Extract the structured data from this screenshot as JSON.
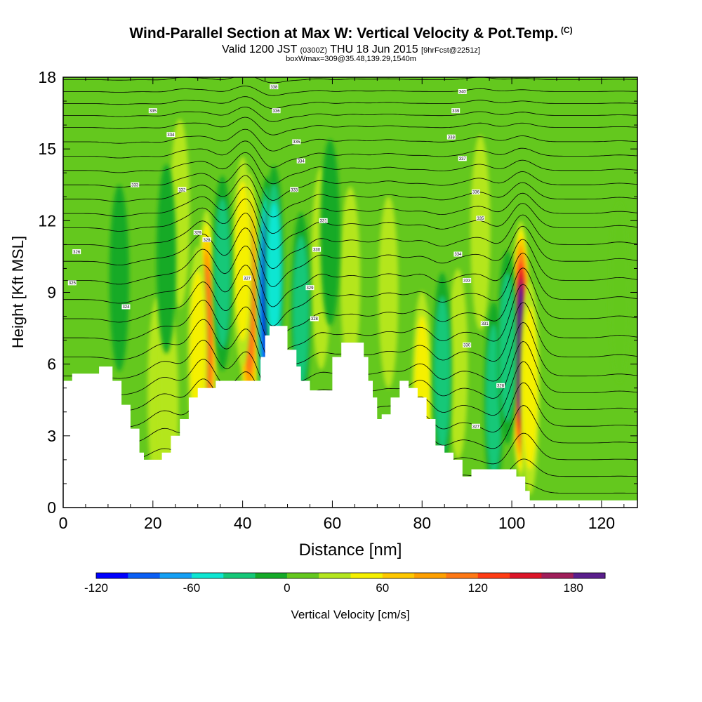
{
  "header": {
    "title": "Wind-Parallel Section at Max W: Vertical Velocity & Pot.Temp.",
    "copyright": "(C)",
    "valid_prefix": "Valid 1200 JST",
    "valid_utc": "(0300Z)",
    "valid_date": "THU 18 Jun 2015",
    "forecast": "[9hrFcst@2251z]",
    "box_info": "boxWmax=309@35.48,139.29,1540m"
  },
  "chart_data": {
    "type": "heatmap",
    "xlabel": "Distance [nm]",
    "ylabel": "Height [Kft MSL]",
    "xlim": [
      0,
      128
    ],
    "ylim": [
      0,
      18
    ],
    "x_ticks": [
      0,
      20,
      40,
      60,
      80,
      100,
      120
    ],
    "x_tick_labels": [
      "0",
      "20",
      "40",
      "60",
      "80",
      "100",
      "120"
    ],
    "y_ticks": [
      0,
      3,
      6,
      9,
      12,
      15,
      18
    ],
    "y_tick_labels": [
      "0",
      "3",
      "6",
      "9",
      "12",
      "15",
      "18"
    ],
    "colorbar": {
      "label": "Vertical Velocity [cm/s]",
      "min": -120,
      "max": 200,
      "step": 20,
      "tick_values": [
        -120,
        -60,
        0,
        60,
        120,
        180
      ],
      "tick_labels": [
        "-120",
        "-60",
        "0",
        "60",
        "120",
        "180"
      ],
      "colors": [
        "#0000ff",
        "#0a5ff5",
        "#14a0f5",
        "#0ee6d2",
        "#14c878",
        "#14aa28",
        "#64c81e",
        "#b4e61e",
        "#f5f000",
        "#ffc800",
        "#ffa000",
        "#ff7814",
        "#ff3c14",
        "#dc1428",
        "#a01e5a",
        "#5a1e8c"
      ]
    },
    "background_value": 10,
    "terrain": [
      [
        0,
        5.3
      ],
      [
        2,
        5.6
      ],
      [
        7,
        5.6
      ],
      [
        8,
        5.9
      ],
      [
        10,
        5.9
      ],
      [
        11,
        5.3
      ],
      [
        13,
        4.3
      ],
      [
        15,
        3.3
      ],
      [
        17,
        2.3
      ],
      [
        18,
        2.0
      ],
      [
        21,
        2.0
      ],
      [
        22,
        2.3
      ],
      [
        24,
        3.0
      ],
      [
        26,
        3.7
      ],
      [
        28,
        4.6
      ],
      [
        30,
        5.0
      ],
      [
        32,
        5.0
      ],
      [
        34,
        5.3
      ],
      [
        38,
        5.3
      ],
      [
        42,
        5.3
      ],
      [
        44,
        6.3
      ],
      [
        45,
        7.2
      ],
      [
        46,
        7.6
      ],
      [
        48,
        7.6
      ],
      [
        50,
        6.6
      ],
      [
        52,
        5.9
      ],
      [
        53,
        5.3
      ],
      [
        55,
        4.9
      ],
      [
        58,
        4.9
      ],
      [
        60,
        6.3
      ],
      [
        62,
        6.9
      ],
      [
        66,
        6.9
      ],
      [
        67,
        6.3
      ],
      [
        68,
        5.3
      ],
      [
        69,
        4.6
      ],
      [
        70,
        3.7
      ],
      [
        71,
        3.9
      ],
      [
        73,
        4.6
      ],
      [
        75,
        5.3
      ],
      [
        77,
        5.0
      ],
      [
        79,
        4.6
      ],
      [
        81,
        3.7
      ],
      [
        83,
        2.6
      ],
      [
        85,
        2.3
      ],
      [
        87,
        2.0
      ],
      [
        89,
        1.3
      ],
      [
        91,
        1.6
      ],
      [
        92,
        1.6
      ],
      [
        98,
        1.6
      ],
      [
        101,
        1.3
      ],
      [
        103,
        0.7
      ],
      [
        104,
        0.3
      ],
      [
        108,
        0.3
      ],
      [
        128,
        0.3
      ]
    ],
    "updrafts": [
      {
        "x": 21,
        "y": 4.7,
        "w": 34
      },
      {
        "x": 23.5,
        "y": 4.2,
        "w": 46
      },
      {
        "x": 32,
        "y": 7.1,
        "w": 118
      },
      {
        "x": 30,
        "y": 6.5,
        "w": 56
      },
      {
        "x": 41.5,
        "y": 8.6,
        "w": 122
      },
      {
        "x": 40,
        "y": 10.3,
        "w": 52
      },
      {
        "x": 57.5,
        "y": 10.0,
        "w": 42
      },
      {
        "x": 64,
        "y": 9.5,
        "w": 22
      },
      {
        "x": 72.5,
        "y": 9.0,
        "w": 28
      },
      {
        "x": 80,
        "y": 4.6,
        "w": 58
      },
      {
        "x": 93,
        "y": 11.5,
        "w": 32
      },
      {
        "x": 102,
        "y": 6.6,
        "w": 196
      },
      {
        "x": 104,
        "y": 5.0,
        "w": 58
      },
      {
        "x": 88,
        "y": 6.0,
        "w": 26
      },
      {
        "x": 26,
        "y": 12.3,
        "w": 24
      },
      {
        "x": 124,
        "y": 9.0,
        "w": 12
      }
    ],
    "downdrafts": [
      {
        "x": 45.5,
        "y": 8.6,
        "w": -110
      },
      {
        "x": 47,
        "y": 9.8,
        "w": -60
      },
      {
        "x": 53,
        "y": 8.2,
        "w": -36
      },
      {
        "x": 35.5,
        "y": 9.8,
        "w": -32
      },
      {
        "x": 84.5,
        "y": 5.6,
        "w": -42
      },
      {
        "x": 96,
        "y": 4.5,
        "w": -34
      },
      {
        "x": 99,
        "y": 6.7,
        "w": -30
      },
      {
        "x": 23,
        "y": 10.4,
        "w": -24
      },
      {
        "x": 12.5,
        "y": 9.6,
        "w": -20
      },
      {
        "x": 59.5,
        "y": 11.5,
        "w": -20
      }
    ],
    "theta_contours": {
      "base_values": [
        0.6,
        1.3,
        2.0,
        2.7,
        3.4,
        4.1,
        4.8,
        5.5,
        6.3,
        7.1,
        7.9,
        8.7,
        9.5,
        10.3,
        11.0,
        11.7,
        12.3,
        12.9,
        13.5,
        14.1,
        14.7,
        15.3,
        15.9,
        16.4,
        16.9,
        17.4,
        17.9
      ],
      "labels": [
        {
          "x": 3,
          "y": 10.7,
          "text": "326"
        },
        {
          "x": 2,
          "y": 9.4,
          "text": "325"
        },
        {
          "x": 14,
          "y": 8.4,
          "text": "324"
        },
        {
          "x": 16,
          "y": 13.5,
          "text": "333"
        },
        {
          "x": 20,
          "y": 16.6,
          "text": "335"
        },
        {
          "x": 24,
          "y": 15.6,
          "text": "334"
        },
        {
          "x": 26.5,
          "y": 13.3,
          "text": "332"
        },
        {
          "x": 30,
          "y": 11.5,
          "text": "329"
        },
        {
          "x": 32,
          "y": 11.2,
          "text": "328"
        },
        {
          "x": 41,
          "y": 9.6,
          "text": "327"
        },
        {
          "x": 47,
          "y": 17.6,
          "text": "338"
        },
        {
          "x": 47.5,
          "y": 16.6,
          "text": "336"
        },
        {
          "x": 52,
          "y": 15.3,
          "text": "335"
        },
        {
          "x": 53,
          "y": 14.5,
          "text": "334"
        },
        {
          "x": 51.5,
          "y": 13.3,
          "text": "333"
        },
        {
          "x": 58,
          "y": 12.0,
          "text": "331"
        },
        {
          "x": 56.5,
          "y": 10.8,
          "text": "330"
        },
        {
          "x": 55,
          "y": 9.2,
          "text": "329"
        },
        {
          "x": 56,
          "y": 7.9,
          "text": "328"
        },
        {
          "x": 89,
          "y": 17.4,
          "text": "340"
        },
        {
          "x": 87.5,
          "y": 16.6,
          "text": "339"
        },
        {
          "x": 86.5,
          "y": 15.5,
          "text": "338"
        },
        {
          "x": 89,
          "y": 14.6,
          "text": "337"
        },
        {
          "x": 92,
          "y": 13.2,
          "text": "336"
        },
        {
          "x": 93,
          "y": 12.1,
          "text": "335"
        },
        {
          "x": 88,
          "y": 10.6,
          "text": "334"
        },
        {
          "x": 90,
          "y": 9.5,
          "text": "333"
        },
        {
          "x": 94,
          "y": 7.7,
          "text": "331"
        },
        {
          "x": 90,
          "y": 6.8,
          "text": "330"
        },
        {
          "x": 97.5,
          "y": 5.1,
          "text": "328"
        },
        {
          "x": 92,
          "y": 3.4,
          "text": "327"
        }
      ]
    }
  }
}
